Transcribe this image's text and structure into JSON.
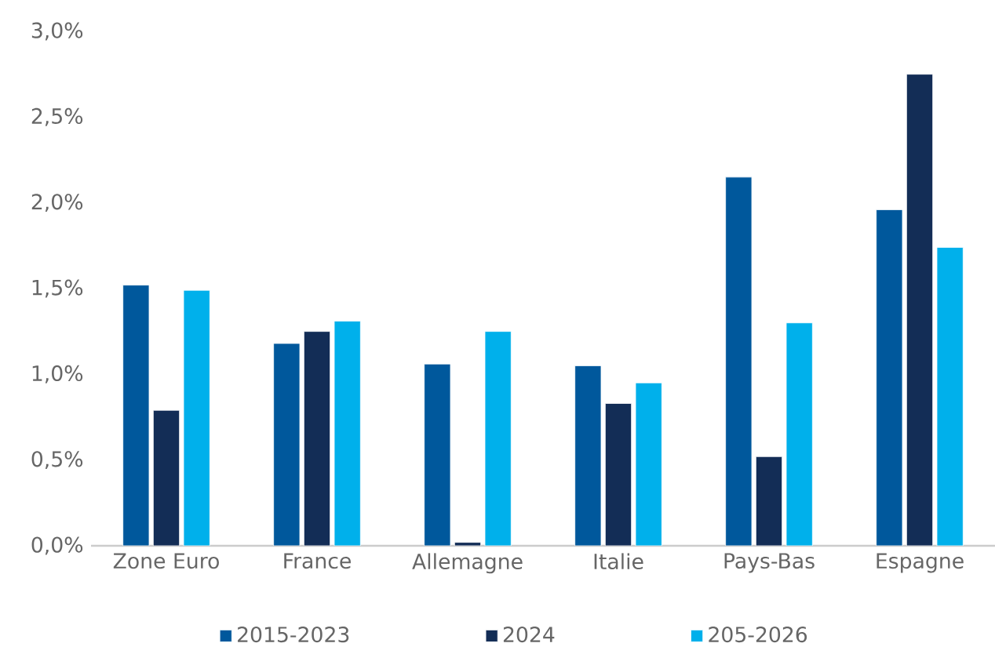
{
  "chart_data": {
    "type": "bar",
    "categories": [
      "Zone Euro",
      "France",
      "Allemagne",
      "Italie",
      "Pays-Bas",
      "Espagne"
    ],
    "series": [
      {
        "name": "2015-2023",
        "color": "#00589c",
        "values": [
          1.52,
          1.18,
          1.06,
          1.05,
          2.15,
          1.96
        ]
      },
      {
        "name": "2024",
        "color": "#132d56",
        "values": [
          0.79,
          1.25,
          0.02,
          0.83,
          0.52,
          2.75
        ]
      },
      {
        "name": "205-2026",
        "color": "#00b0eb",
        "values": [
          1.49,
          1.31,
          1.25,
          0.95,
          1.3,
          1.74
        ]
      }
    ],
    "ylim": [
      0,
      3.0
    ],
    "yticks": [
      {
        "value": 0,
        "label": "0,0%"
      },
      {
        "value": 0.5,
        "label": "0,5%"
      },
      {
        "value": 1.0,
        "label": "1,0%"
      },
      {
        "value": 1.5,
        "label": "1,5%"
      },
      {
        "value": 2.0,
        "label": "2,0%"
      },
      {
        "value": 2.5,
        "label": "2,5%"
      },
      {
        "value": 3.0,
        "label": "3,0%"
      }
    ],
    "legend": "bottom"
  }
}
